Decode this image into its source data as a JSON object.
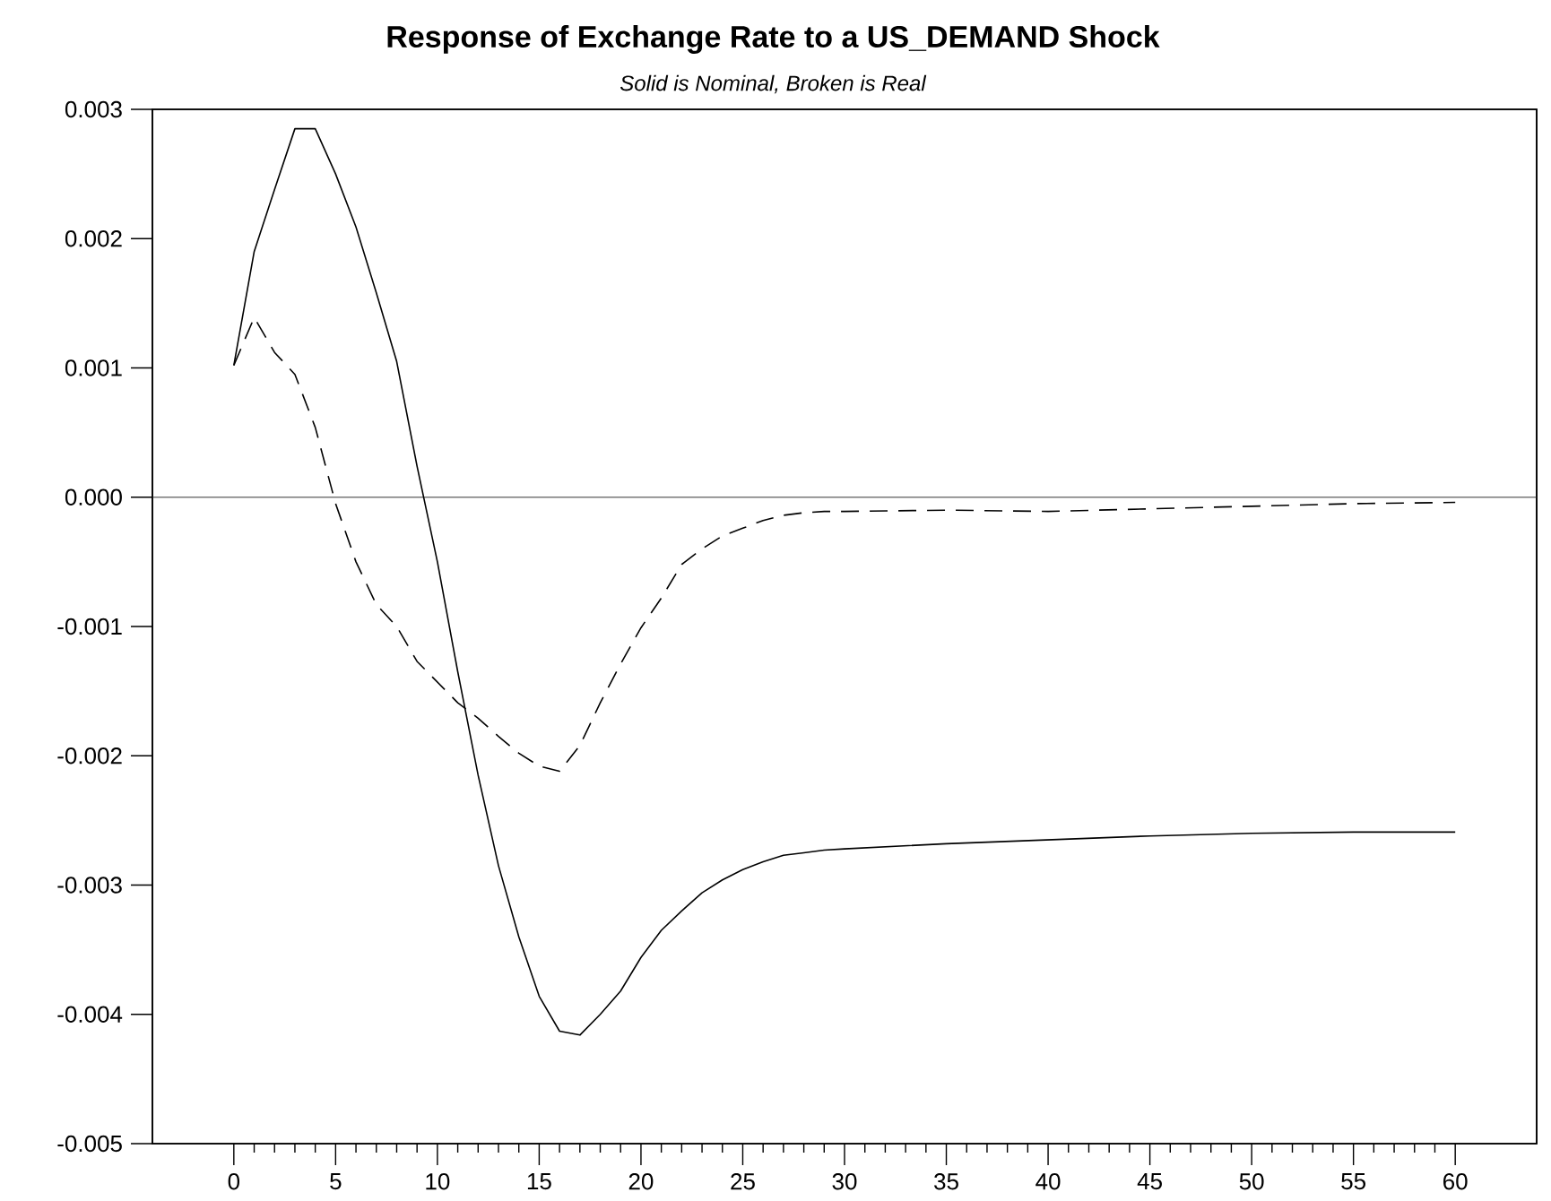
{
  "chart_data": {
    "type": "line",
    "title": "Response of Exchange Rate to a US_DEMAND Shock",
    "subtitle": "Solid is Nominal, Broken is Real",
    "xlim": [
      -4,
      64
    ],
    "ylim": [
      -0.005,
      0.003
    ],
    "xticks": [
      {
        "value": 0,
        "label": "0"
      },
      {
        "value": 1,
        "label": null
      },
      {
        "value": 2,
        "label": null
      },
      {
        "value": 3,
        "label": null
      },
      {
        "value": 4,
        "label": null
      },
      {
        "value": 5,
        "label": "5"
      },
      {
        "value": 6,
        "label": null
      },
      {
        "value": 7,
        "label": null
      },
      {
        "value": 8,
        "label": null
      },
      {
        "value": 9,
        "label": null
      },
      {
        "value": 10,
        "label": "10"
      },
      {
        "value": 11,
        "label": null
      },
      {
        "value": 12,
        "label": null
      },
      {
        "value": 13,
        "label": null
      },
      {
        "value": 14,
        "label": null
      },
      {
        "value": 15,
        "label": "15"
      },
      {
        "value": 16,
        "label": null
      },
      {
        "value": 17,
        "label": null
      },
      {
        "value": 18,
        "label": null
      },
      {
        "value": 19,
        "label": null
      },
      {
        "value": 20,
        "label": "20"
      },
      {
        "value": 21,
        "label": null
      },
      {
        "value": 22,
        "label": null
      },
      {
        "value": 23,
        "label": null
      },
      {
        "value": 24,
        "label": null
      },
      {
        "value": 25,
        "label": "25"
      },
      {
        "value": 26,
        "label": null
      },
      {
        "value": 27,
        "label": null
      },
      {
        "value": 28,
        "label": null
      },
      {
        "value": 29,
        "label": null
      },
      {
        "value": 30,
        "label": "30"
      },
      {
        "value": 31,
        "label": null
      },
      {
        "value": 32,
        "label": null
      },
      {
        "value": 33,
        "label": null
      },
      {
        "value": 34,
        "label": null
      },
      {
        "value": 35,
        "label": "35"
      },
      {
        "value": 36,
        "label": null
      },
      {
        "value": 37,
        "label": null
      },
      {
        "value": 38,
        "label": null
      },
      {
        "value": 39,
        "label": null
      },
      {
        "value": 40,
        "label": "40"
      },
      {
        "value": 41,
        "label": null
      },
      {
        "value": 42,
        "label": null
      },
      {
        "value": 43,
        "label": null
      },
      {
        "value": 44,
        "label": null
      },
      {
        "value": 45,
        "label": "45"
      },
      {
        "value": 46,
        "label": null
      },
      {
        "value": 47,
        "label": null
      },
      {
        "value": 48,
        "label": null
      },
      {
        "value": 49,
        "label": null
      },
      {
        "value": 50,
        "label": "50"
      },
      {
        "value": 51,
        "label": null
      },
      {
        "value": 52,
        "label": null
      },
      {
        "value": 53,
        "label": null
      },
      {
        "value": 54,
        "label": null
      },
      {
        "value": 55,
        "label": "55"
      },
      {
        "value": 56,
        "label": null
      },
      {
        "value": 57,
        "label": null
      },
      {
        "value": 58,
        "label": null
      },
      {
        "value": 59,
        "label": null
      },
      {
        "value": 60,
        "label": "60"
      }
    ],
    "yticks": [
      {
        "value": -0.005,
        "label": "-0.005"
      },
      {
        "value": -0.004,
        "label": "-0.004"
      },
      {
        "value": -0.003,
        "label": "-0.003"
      },
      {
        "value": -0.002,
        "label": "-0.002"
      },
      {
        "value": -0.001,
        "label": "-0.001"
      },
      {
        "value": 0,
        "label": "0.000"
      },
      {
        "value": 0.001,
        "label": "0.001"
      },
      {
        "value": 0.002,
        "label": "0.002"
      },
      {
        "value": 0.003,
        "label": "0.003"
      }
    ],
    "ref_lines": [
      {
        "axis": "y",
        "value": 0,
        "color": "#777777"
      }
    ],
    "grid": false,
    "marker": "none",
    "series": [
      {
        "color": "#000000",
        "line_style": "solid",
        "x": [
          0,
          1,
          2,
          3,
          4,
          5,
          6,
          7,
          8,
          9,
          10,
          11,
          12,
          13,
          14,
          15,
          16,
          17,
          18,
          19,
          20,
          21,
          22,
          23,
          24,
          25,
          26,
          27,
          28,
          29,
          30,
          35,
          40,
          45,
          50,
          55,
          60
        ],
        "values": [
          0.00102,
          0.0019,
          0.00238,
          0.00285,
          0.00285,
          0.0025,
          0.00209,
          0.00158,
          0.00105,
          0.00024,
          -0.0005,
          -0.00135,
          -0.00215,
          -0.00285,
          -0.0034,
          -0.00386,
          -0.00413,
          -0.00416,
          -0.004,
          -0.00382,
          -0.00356,
          -0.00335,
          -0.0032,
          -0.00306,
          -0.00296,
          -0.00288,
          -0.00282,
          -0.00277,
          -0.00275,
          -0.00273,
          -0.00272,
          -0.00268,
          -0.00265,
          -0.00262,
          -0.0026,
          -0.00259,
          -0.00259
        ]
      },
      {
        "color": "#000000",
        "line_style": "dashed",
        "x": [
          0,
          1,
          2,
          3,
          4,
          5,
          6,
          7,
          8,
          9,
          10,
          11,
          12,
          13,
          14,
          15,
          16,
          17,
          18,
          19,
          20,
          21,
          22,
          23,
          24,
          25,
          26,
          27,
          28,
          29,
          30,
          35,
          40,
          45,
          50,
          55,
          60
        ],
        "values": [
          0.00102,
          0.00139,
          0.00112,
          0.00095,
          0.00054,
          -5e-05,
          -0.0005,
          -0.00083,
          -0.001,
          -0.00127,
          -0.00143,
          -0.00159,
          -0.00171,
          -0.00185,
          -0.00198,
          -0.00208,
          -0.00212,
          -0.00192,
          -0.00159,
          -0.00129,
          -0.00101,
          -0.00078,
          -0.00052,
          -0.0004,
          -0.0003,
          -0.00024,
          -0.00018,
          -0.00014,
          -0.00012,
          -0.00011,
          -0.00011,
          -0.0001,
          -0.00011,
          -9e-05,
          -7e-05,
          -5e-05,
          -4e-05
        ]
      }
    ]
  }
}
